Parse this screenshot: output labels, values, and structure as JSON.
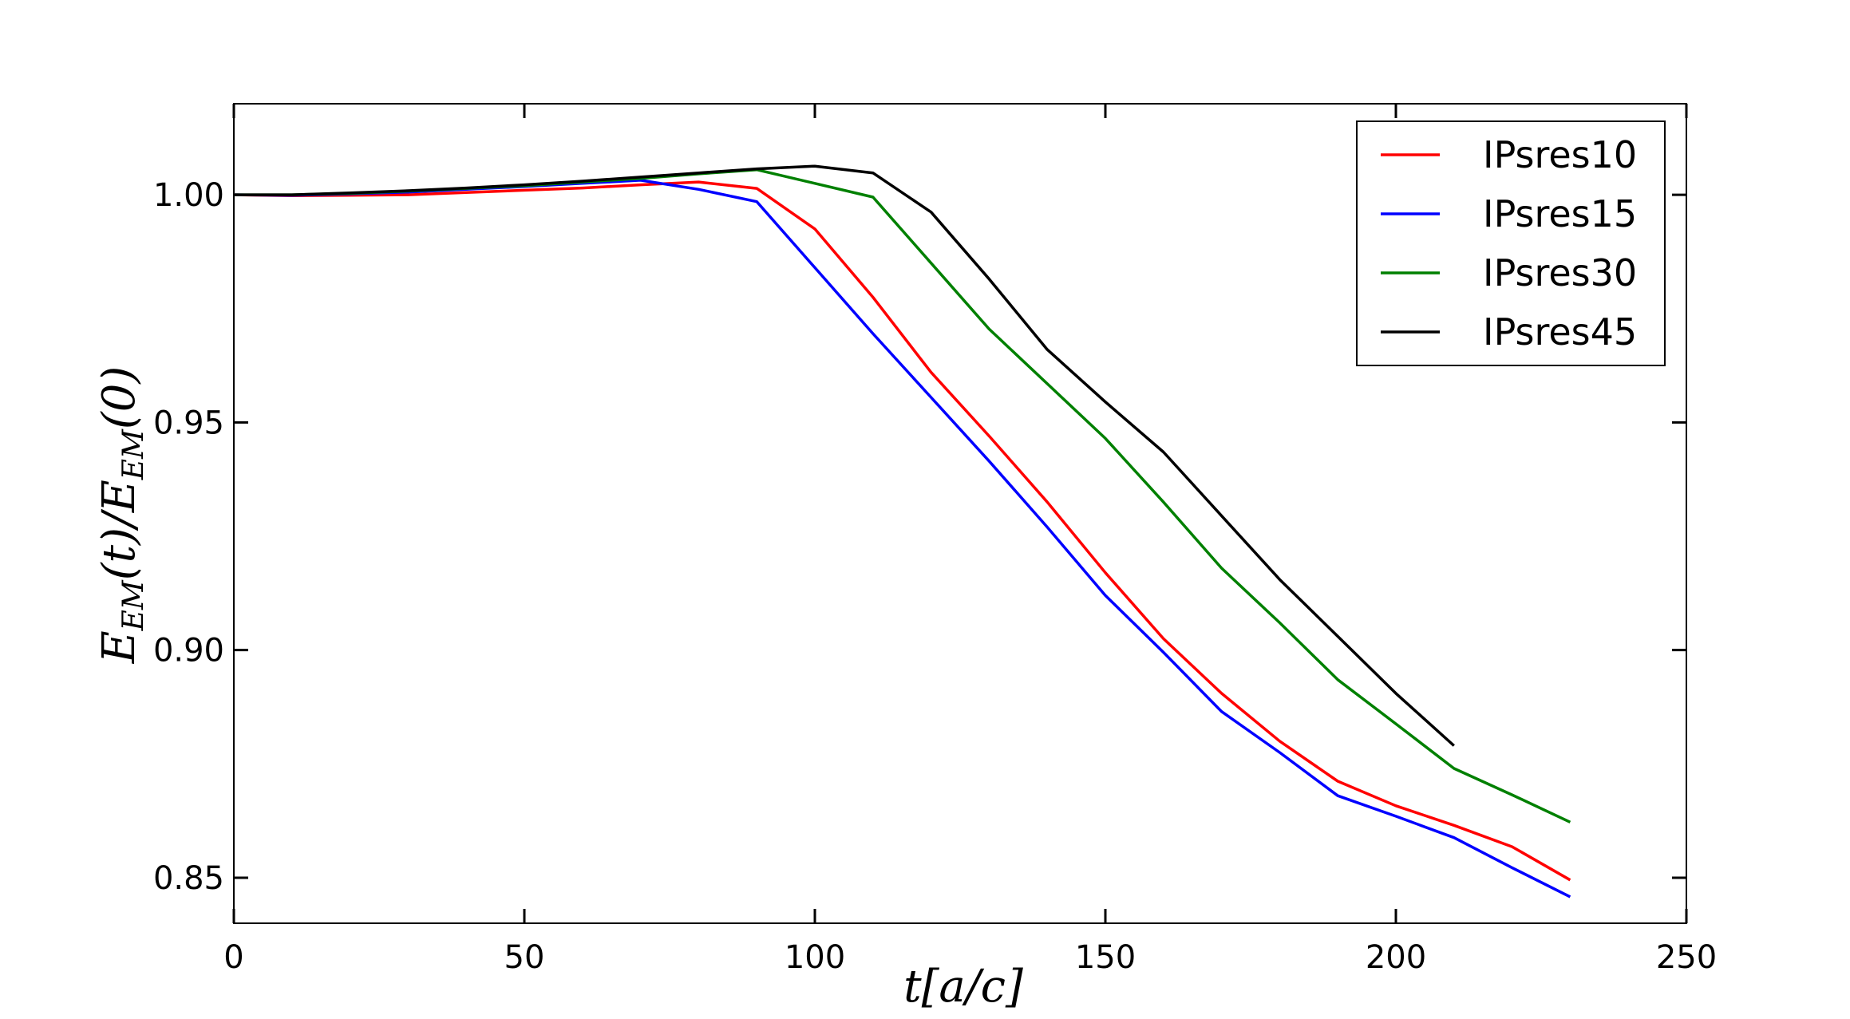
{
  "chart_data": {
    "type": "line",
    "title": "",
    "xlabel": "t[a/c]",
    "ylabel": "E_EM(t)/E_EM(0)",
    "xlim": [
      0,
      250
    ],
    "ylim": [
      0.84,
      1.02
    ],
    "xticks": [
      0,
      50,
      100,
      150,
      200,
      250
    ],
    "xtick_labels": [
      "0",
      "50",
      "100",
      "150",
      "200",
      "250"
    ],
    "yticks": [
      0.85,
      0.9,
      0.95,
      1.0
    ],
    "ytick_labels": [
      "0.85",
      "0.90",
      "0.95",
      "1.00"
    ],
    "grid": false,
    "legend_position": "top-right",
    "series": [
      {
        "name": "IPsres10",
        "color": "#ff0000",
        "x": [
          0,
          10,
          20,
          30,
          40,
          50,
          60,
          70,
          80,
          90,
          100,
          110,
          120,
          130,
          140,
          150,
          160,
          170,
          180,
          190,
          200,
          210,
          220,
          230
        ],
        "y": [
          1.0,
          0.9998,
          0.9999,
          1.0,
          1.0005,
          1.001,
          1.0015,
          1.0022,
          1.0028,
          1.0014,
          0.9925,
          0.9775,
          0.961,
          0.947,
          0.9325,
          0.917,
          0.9025,
          0.8905,
          0.88,
          0.8712,
          0.8658,
          0.8615,
          0.8568,
          0.8495
        ]
      },
      {
        "name": "IPsres15",
        "color": "#0000ff",
        "x": [
          0,
          10,
          20,
          30,
          40,
          50,
          60,
          70,
          80,
          90,
          100,
          110,
          120,
          130,
          140,
          150,
          160,
          170,
          180,
          190,
          200,
          210,
          220,
          230
        ],
        "y": [
          1.0,
          0.9999,
          1.0002,
          1.0006,
          1.0012,
          1.0018,
          1.0025,
          1.0032,
          1.0012,
          0.9985,
          0.984,
          0.9695,
          0.9555,
          0.9415,
          0.927,
          0.912,
          0.8995,
          0.8865,
          0.8775,
          0.868,
          0.8635,
          0.8588,
          0.8522,
          0.8458
        ]
      },
      {
        "name": "IPsres30",
        "color": "#008000",
        "x": [
          0,
          10,
          20,
          30,
          40,
          50,
          60,
          70,
          80,
          90,
          100,
          110,
          120,
          130,
          140,
          150,
          160,
          170,
          180,
          190,
          200,
          210,
          220,
          230
        ],
        "y": [
          1.0,
          1.0,
          1.0003,
          1.0008,
          1.0014,
          1.002,
          1.0028,
          1.0036,
          1.0046,
          1.0055,
          1.0025,
          0.9995,
          0.985,
          0.9705,
          0.9585,
          0.9465,
          0.9325,
          0.918,
          0.906,
          0.8935,
          0.8838,
          0.874,
          0.8682,
          0.8622
        ]
      },
      {
        "name": "IPsres45",
        "color": "#000000",
        "x": [
          0,
          10,
          20,
          30,
          40,
          50,
          60,
          70,
          80,
          90,
          100,
          110,
          120,
          130,
          140,
          150,
          160,
          170,
          180,
          190,
          200,
          210
        ],
        "y": [
          1.0,
          1.0,
          1.0004,
          1.0009,
          1.0015,
          1.0022,
          1.003,
          1.0039,
          1.0048,
          1.0057,
          1.0063,
          1.0048,
          0.9962,
          0.9815,
          0.966,
          0.9545,
          0.9435,
          0.9295,
          0.9155,
          0.903,
          0.8905,
          0.879
        ]
      }
    ]
  }
}
